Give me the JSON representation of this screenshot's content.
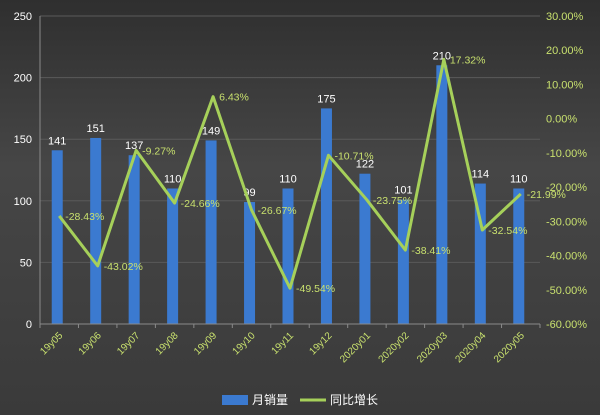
{
  "colors": {
    "bar": "#3b7ad0",
    "line": "#a6d05a",
    "grid": "#5a5a5a"
  },
  "chart_data": {
    "type": "bar+line",
    "categories": [
      "19y05",
      "19y06",
      "19y07",
      "19y08",
      "19y09",
      "19y10",
      "19y11",
      "19y12",
      "2020y01",
      "2020y02",
      "2020y03",
      "2020y04",
      "2020y05"
    ],
    "series": [
      {
        "name": "月销量",
        "type": "bar",
        "axis": "left",
        "values": [
          141,
          151,
          137,
          110,
          149,
          99,
          110,
          175,
          122,
          101,
          210,
          114,
          110
        ],
        "labels": [
          "141",
          "151",
          "137",
          "110",
          "149",
          "99",
          "110",
          "175",
          "122",
          "101",
          "210",
          "114",
          "110"
        ]
      },
      {
        "name": "同比增长",
        "type": "line",
        "axis": "right",
        "values": [
          -28.43,
          -43.02,
          -9.27,
          -24.66,
          6.43,
          -26.67,
          -49.54,
          -10.71,
          -23.75,
          -38.41,
          17.32,
          -32.54,
          -21.99
        ],
        "labels": [
          "-28.43%",
          "-43.02%",
          "-9.27%",
          "-24.66%",
          "6.43%",
          "-26.67%",
          "-49.54%",
          "-10.71%",
          "-23.75%",
          "-38.41%",
          "17.32%",
          "-32.54%",
          "-21.99%"
        ]
      }
    ],
    "ylim_left": [
      0,
      250
    ],
    "left_ticks": [
      "0",
      "50",
      "100",
      "150",
      "200",
      "250"
    ],
    "ylim_right": [
      -60,
      30
    ],
    "right_ticks": [
      "-60.00%",
      "-50.00%",
      "-40.00%",
      "-30.00%",
      "-20.00%",
      "-10.00%",
      "0.00%",
      "10.00%",
      "20.00%",
      "30.00%"
    ],
    "grid": true,
    "legend": "bottom"
  }
}
